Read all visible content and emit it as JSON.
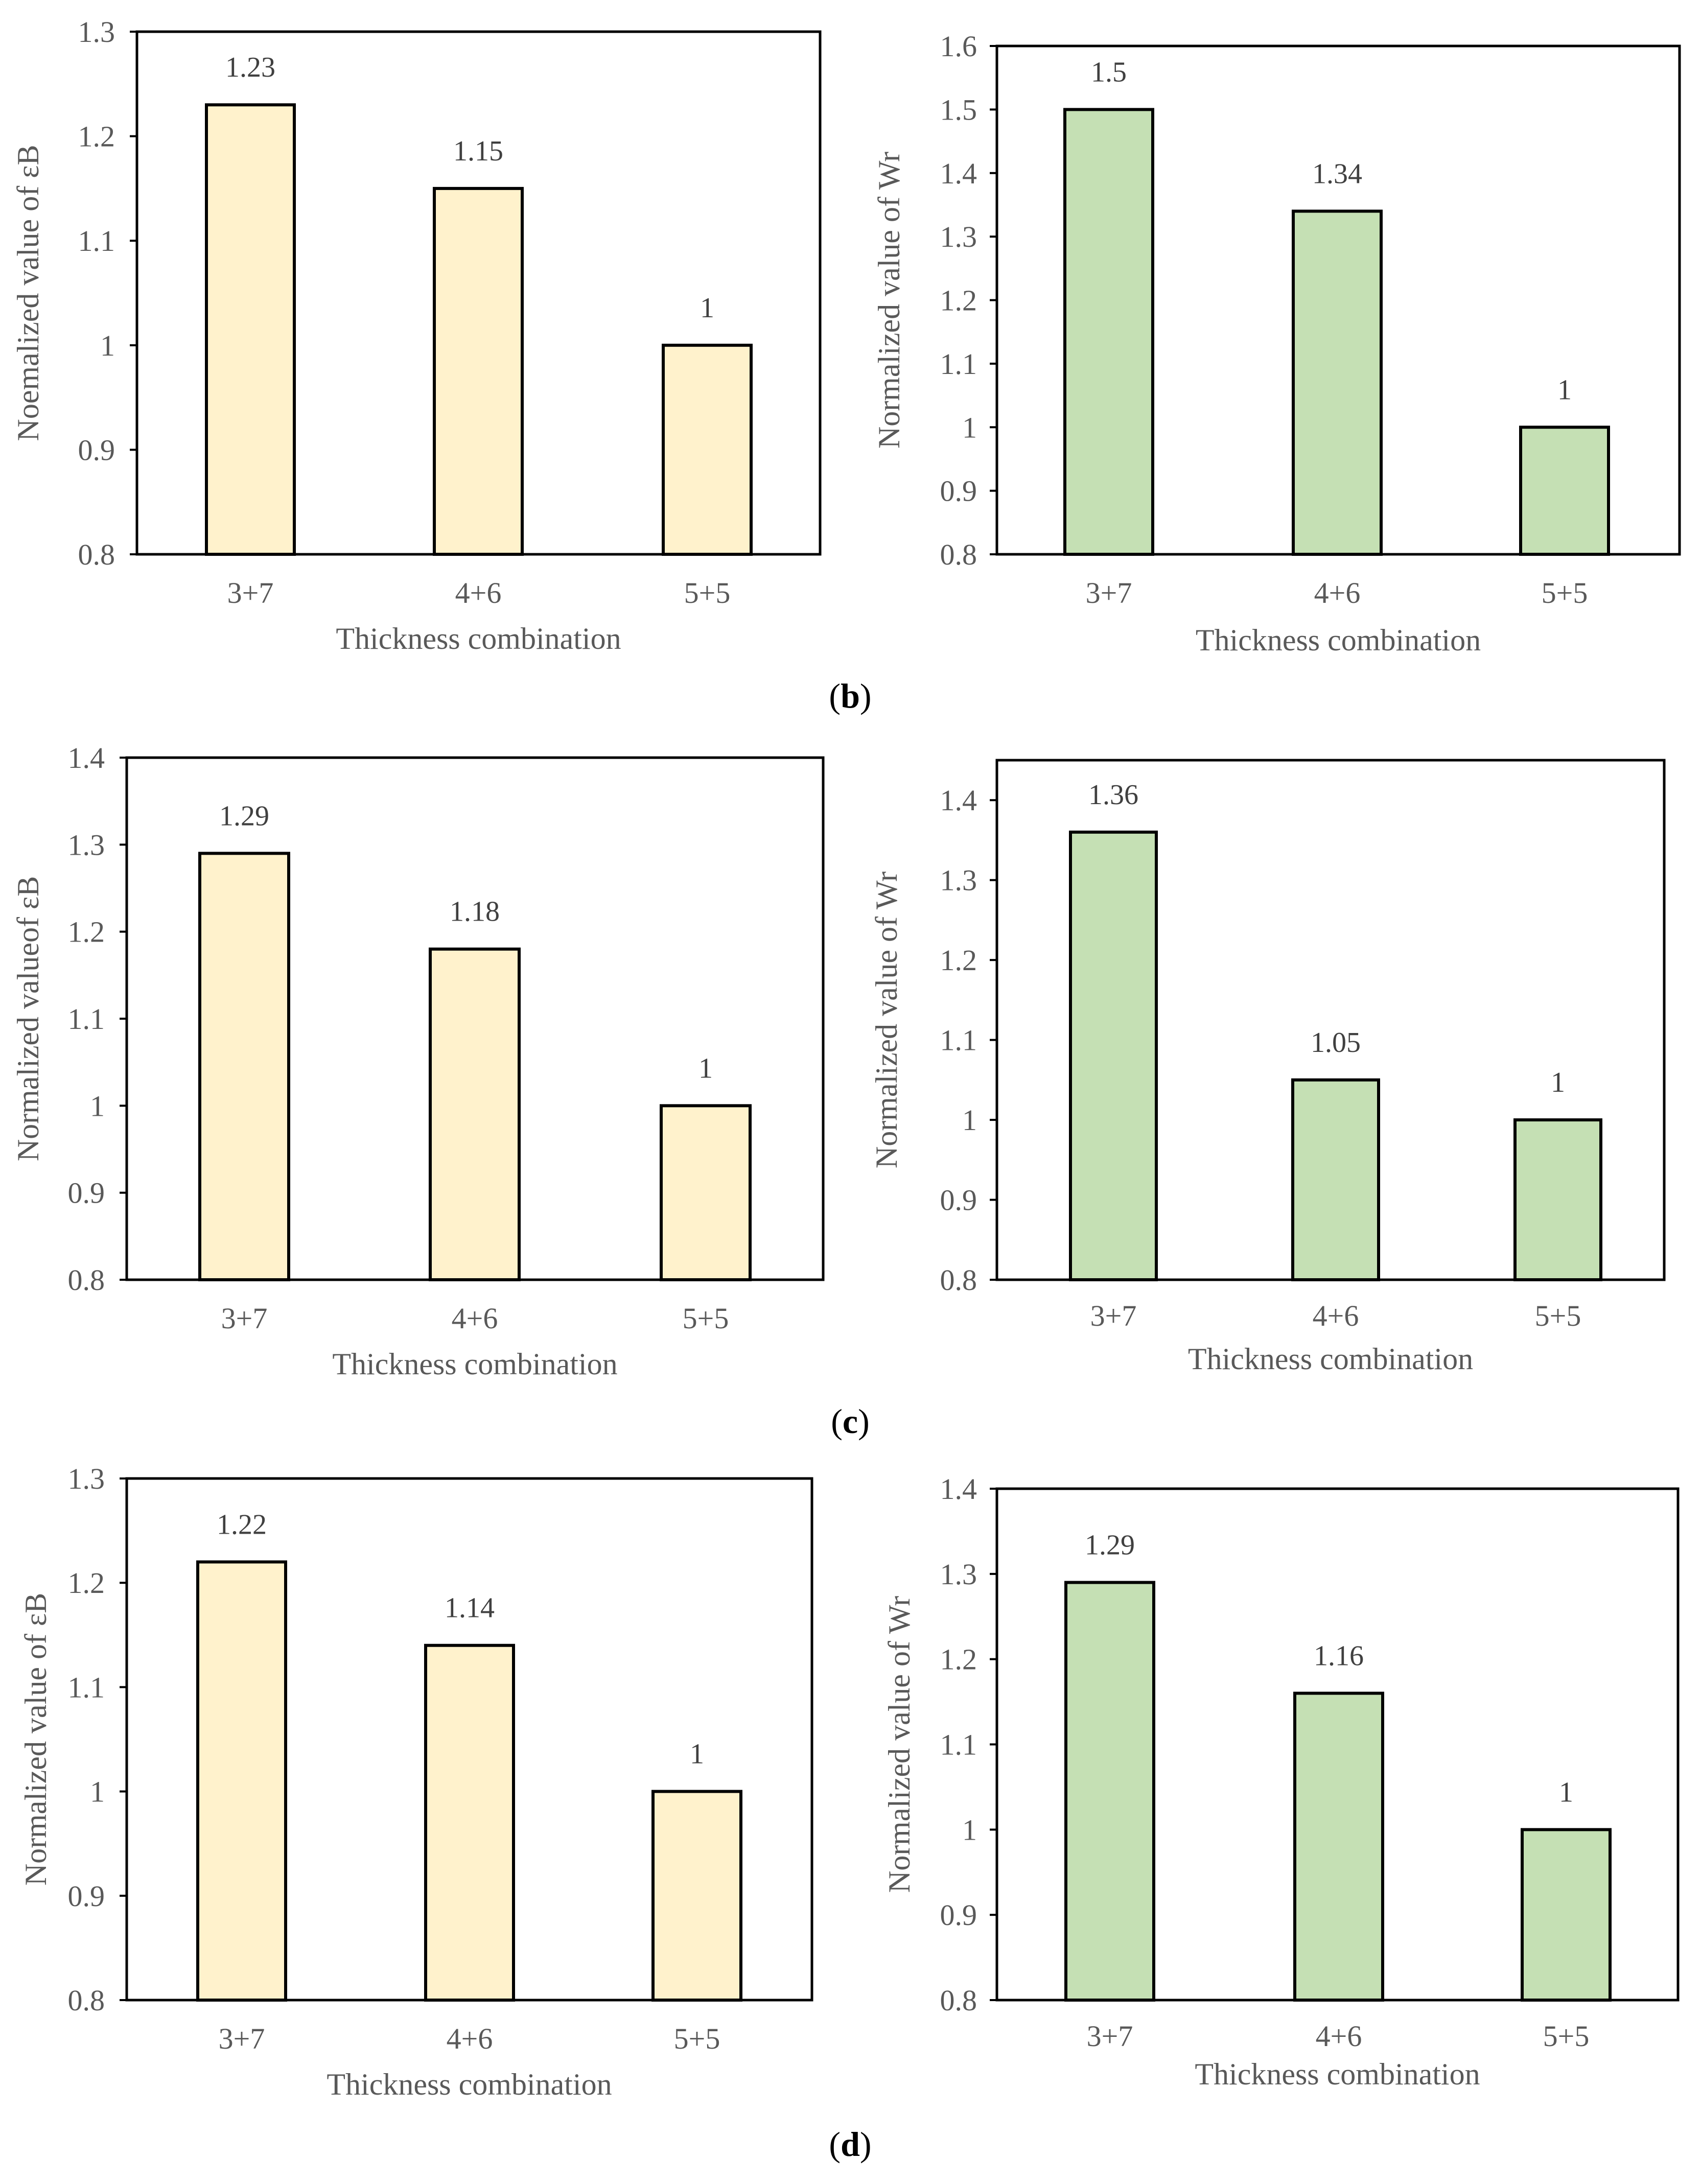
{
  "figure": {
    "captions": [
      {
        "letter": "b",
        "open": "(",
        "close": ")"
      },
      {
        "letter": "c",
        "open": "(",
        "close": ")"
      },
      {
        "letter": "d",
        "open": "(",
        "close": ")"
      }
    ]
  },
  "colors": {
    "eb_bar_fill": "#FFF2CC",
    "wr_bar_fill": "#C5E0B4",
    "axis_line": "#000000",
    "tick_text": "#595959",
    "label_text": "#404040"
  },
  "chart_data": [
    {
      "id": "b-left",
      "type": "bar",
      "panel": "b",
      "position": "left",
      "categories": [
        "3+7",
        "4+6",
        "5+5"
      ],
      "values": [
        1.23,
        1.15,
        1
      ],
      "data_labels": [
        "1.23",
        "1.15",
        "1"
      ],
      "xlabel": "Thickness combination",
      "ylabel": "Noemalized value of εB",
      "ylim": [
        0.8,
        1.3
      ],
      "yticks": [
        0.8,
        0.9,
        1,
        1.1,
        1.2,
        1.3
      ],
      "ytick_labels": [
        "0.8",
        "0.9",
        "1",
        "1.1",
        "1.2",
        "1.3"
      ],
      "series_color": "#FFF2CC",
      "grid": false
    },
    {
      "id": "b-right",
      "type": "bar",
      "panel": "b",
      "position": "right",
      "categories": [
        "3+7",
        "4+6",
        "5+5"
      ],
      "values": [
        1.5,
        1.34,
        1
      ],
      "data_labels": [
        "1.5",
        "1.34",
        "1"
      ],
      "xlabel": "Thickness combination",
      "ylabel": "Normalized value of Wr",
      "ylim": [
        0.8,
        1.6
      ],
      "yticks": [
        0.8,
        0.9,
        1,
        1.1,
        1.2,
        1.3,
        1.4,
        1.5,
        1.6
      ],
      "ytick_labels": [
        "0.8",
        "0.9",
        "1",
        "1.1",
        "1.2",
        "1.3",
        "1.4",
        "1.5",
        "1.6"
      ],
      "series_color": "#C5E0B4",
      "grid": false
    },
    {
      "id": "c-left",
      "type": "bar",
      "panel": "c",
      "position": "left",
      "categories": [
        "3+7",
        "4+6",
        "5+5"
      ],
      "values": [
        1.29,
        1.18,
        1
      ],
      "data_labels": [
        "1.29",
        "1.18",
        "1"
      ],
      "xlabel": "Thickness combination",
      "ylabel": "Normalized valueof εB",
      "ylim": [
        0.8,
        1.4
      ],
      "yticks": [
        0.8,
        0.9,
        1,
        1.1,
        1.2,
        1.3,
        1.4
      ],
      "ytick_labels": [
        "0.8",
        "0.9",
        "1",
        "1.1",
        "1.2",
        "1.3",
        "1.4"
      ],
      "series_color": "#FFF2CC",
      "grid": false
    },
    {
      "id": "c-right",
      "type": "bar",
      "panel": "c",
      "position": "right",
      "categories": [
        "3+7",
        "4+6",
        "5+5"
      ],
      "values": [
        1.36,
        1.05,
        1
      ],
      "data_labels": [
        "1.36",
        "1.05",
        "1"
      ],
      "xlabel": "Thickness combination",
      "ylabel": "Normalized value of Wr",
      "ylim": [
        0.8,
        1.45
      ],
      "yticks": [
        0.8,
        0.9,
        1,
        1.1,
        1.2,
        1.3,
        1.4
      ],
      "ytick_labels": [
        "0.8",
        "0.9",
        "1",
        "1.1",
        "1.2",
        "1.3",
        "1.4"
      ],
      "series_color": "#C5E0B4",
      "grid": false
    },
    {
      "id": "d-left",
      "type": "bar",
      "panel": "d",
      "position": "left",
      "categories": [
        "3+7",
        "4+6",
        "5+5"
      ],
      "values": [
        1.22,
        1.14,
        1
      ],
      "data_labels": [
        "1.22",
        "1.14",
        "1"
      ],
      "xlabel": "Thickness combination",
      "ylabel": "Normalized value of εB",
      "ylim": [
        0.8,
        1.3
      ],
      "yticks": [
        0.8,
        0.9,
        1,
        1.1,
        1.2,
        1.3
      ],
      "ytick_labels": [
        "0.8",
        "0.9",
        "1",
        "1.1",
        "1.2",
        "1.3"
      ],
      "series_color": "#FFF2CC",
      "grid": false
    },
    {
      "id": "d-right",
      "type": "bar",
      "panel": "d",
      "position": "right",
      "categories": [
        "3+7",
        "4+6",
        "5+5"
      ],
      "values": [
        1.29,
        1.16,
        1
      ],
      "data_labels": [
        "1.29",
        "1.16",
        "1"
      ],
      "xlabel": "Thickness combination",
      "ylabel": "Normalized value of Wr",
      "ylim": [
        0.8,
        1.4
      ],
      "yticks": [
        0.8,
        0.9,
        1,
        1.1,
        1.2,
        1.3,
        1.4
      ],
      "ytick_labels": [
        "0.8",
        "0.9",
        "1",
        "1.1",
        "1.2",
        "1.3",
        "1.4"
      ],
      "series_color": "#C5E0B4",
      "grid": false
    }
  ]
}
